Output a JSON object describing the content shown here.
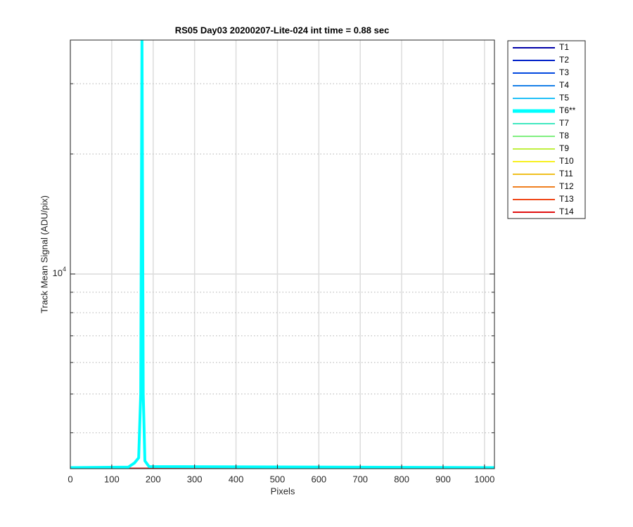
{
  "chart_data": {
    "type": "line",
    "title": "RS05 Day03 20200207-Lite-024 int time = 0.88 sec",
    "x_label": "Pixels",
    "y_label": "Track Mean Signal (ADU/pix)",
    "y_log": true,
    "grid": true,
    "legend": "outside-right",
    "xlim": [
      0,
      1024
    ],
    "xticks": [
      0,
      100,
      200,
      300,
      400,
      500,
      600,
      700,
      800,
      900,
      1000
    ],
    "ylim": [
      3250,
      38600
    ],
    "yticks": [
      {
        "value": 10000,
        "label": "10^4"
      }
    ],
    "yminor": [
      4000,
      5000,
      6000,
      7000,
      8000,
      9000,
      20000,
      30000
    ],
    "x": [
      0,
      140,
      155,
      165,
      170,
      173,
      176,
      180,
      190,
      1024
    ],
    "series": [
      {
        "name": "T1",
        "color": "#0000a8",
        "values": [
          3260,
          3260,
          3260,
          3260,
          3260,
          3260,
          3260,
          3260,
          3260,
          3260
        ]
      },
      {
        "name": "T2",
        "color": "#0020c8",
        "values": [
          3260,
          3260,
          3260,
          3260,
          3260,
          3260,
          3260,
          3260,
          3260,
          3260
        ]
      },
      {
        "name": "T3",
        "color": "#0048e0",
        "values": [
          3260,
          3260,
          3260,
          3260,
          3260,
          3260,
          3260,
          3260,
          3260,
          3260
        ]
      },
      {
        "name": "T4",
        "color": "#1880e8",
        "values": [
          3260,
          3260,
          3260,
          3260,
          3260,
          3260,
          3260,
          3260,
          3260,
          3260
        ]
      },
      {
        "name": "T5",
        "color": "#20c0f8",
        "values": [
          3260,
          3260,
          3260,
          3260,
          3260,
          3260,
          3260,
          3260,
          3260,
          3260
        ]
      },
      {
        "name": "T6**",
        "color": "#00ffff",
        "width": 4,
        "values": [
          3270,
          3280,
          3360,
          3460,
          5000,
          38600,
          5000,
          3400,
          3290,
          3270
        ]
      },
      {
        "name": "T7",
        "color": "#40e8c0",
        "values": [
          3260,
          3260,
          3260,
          3260,
          3260,
          3260,
          3260,
          3260,
          3260,
          3260
        ]
      },
      {
        "name": "T8",
        "color": "#80f080",
        "values": [
          3260,
          3260,
          3260,
          3260,
          3260,
          3260,
          3260,
          3260,
          3260,
          3260
        ]
      },
      {
        "name": "T9",
        "color": "#c0f040",
        "values": [
          3260,
          3260,
          3260,
          3260,
          3260,
          3260,
          3260,
          3260,
          3260,
          3260
        ]
      },
      {
        "name": "T10",
        "color": "#f8f020",
        "values": [
          3260,
          3260,
          3260,
          3260,
          3260,
          3260,
          3260,
          3260,
          3260,
          3260
        ]
      },
      {
        "name": "T11",
        "color": "#f0c020",
        "values": [
          3260,
          3260,
          3260,
          3260,
          3260,
          3260,
          3260,
          3260,
          3260,
          3260
        ]
      },
      {
        "name": "T12",
        "color": "#f08020",
        "values": [
          3260,
          3260,
          3260,
          3260,
          3260,
          3260,
          3260,
          3260,
          3260,
          3260
        ]
      },
      {
        "name": "T13",
        "color": "#f04818",
        "values": [
          3260,
          3260,
          3260,
          3260,
          3260,
          3260,
          3260,
          3260,
          3260,
          3260
        ]
      },
      {
        "name": "T14",
        "color": "#e01010",
        "values": [
          3260,
          3260,
          3260,
          3260,
          3260,
          3260,
          3260,
          3260,
          3260,
          3260
        ]
      }
    ]
  }
}
